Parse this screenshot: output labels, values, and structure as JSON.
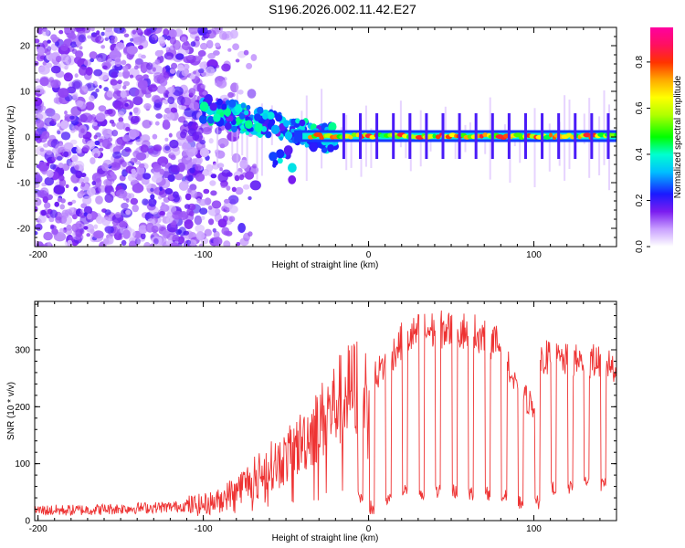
{
  "title": "S196.2026.002.11.42.E27",
  "chart_data": [
    {
      "type": "heatmap",
      "title": "",
      "xlabel": "Height of straight line (km)",
      "ylabel": "Frequency (Hz)",
      "xlim": [
        -202,
        150
      ],
      "ylim": [
        -24,
        24
      ],
      "x_ticks": [
        -200,
        -100,
        0,
        100
      ],
      "x_tick_labels": [
        "-200",
        "-100",
        "0",
        "100"
      ],
      "y_ticks": [
        -20,
        -10,
        0,
        10,
        20
      ],
      "y_tick_labels": [
        "-20",
        "-10",
        "0",
        "10",
        "20"
      ],
      "colorbar": {
        "label": "Normalized spectral amplitude",
        "range": [
          0,
          0.95
        ],
        "ticks": [
          0,
          0.2,
          0.4,
          0.6,
          0.8
        ],
        "tick_labels": [
          "0.0",
          "0.2",
          "0.4",
          "0.6",
          "0.8"
        ]
      },
      "line_frequency_hz": 0.2
    },
    {
      "type": "line",
      "title": "",
      "xlabel": "Height of straight line (km)",
      "ylabel": "SNR (10 * v/v)",
      "xlim": [
        -202,
        150
      ],
      "ylim": [
        0,
        385
      ],
      "x_ticks": [
        -200,
        -100,
        0,
        100
      ],
      "x_tick_labels": [
        "-200",
        "-100",
        "0",
        "100"
      ],
      "y_ticks": [
        0,
        100,
        200,
        300
      ],
      "y_tick_labels": [
        "0",
        "100",
        "200",
        "300"
      ],
      "series": [
        {
          "name": "SNR",
          "color": "#ee3333",
          "x": [
            -202,
            -180,
            -160,
            -140,
            -120,
            -100,
            -90,
            -80,
            -70,
            -60,
            -50,
            -40,
            -30,
            -20,
            -10,
            0,
            10,
            20,
            30,
            40,
            50,
            60,
            70,
            80,
            85,
            90,
            95,
            100,
            105,
            110,
            120,
            130,
            140,
            150
          ],
          "y": [
            18,
            18,
            20,
            22,
            24,
            28,
            35,
            55,
            75,
            95,
            110,
            140,
            170,
            205,
            230,
            240,
            275,
            315,
            330,
            335,
            335,
            335,
            325,
            305,
            265,
            225,
            215,
            200,
            290,
            285,
            280,
            280,
            280,
            270
          ],
          "dips_x": [
            -5,
            2,
            12,
            22,
            32,
            42,
            52,
            62,
            72,
            82,
            92,
            102,
            112,
            122,
            132,
            142
          ],
          "dips_y": [
            30,
            10,
            25,
            40,
            30,
            40,
            40,
            35,
            35,
            35,
            20,
            20,
            45,
            45,
            55,
            50
          ]
        }
      ]
    }
  ]
}
